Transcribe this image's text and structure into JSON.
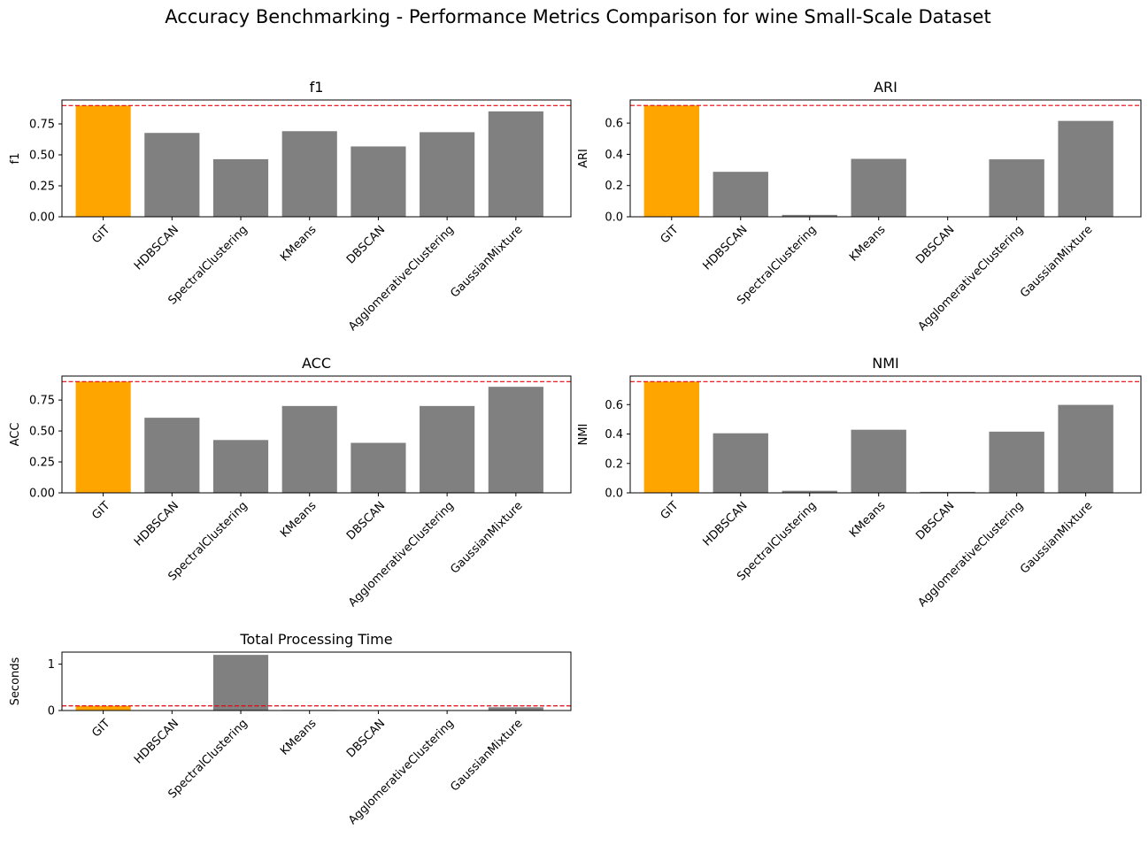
{
  "figure": {
    "suptitle": "Accuracy Benchmarking - Performance Metrics Comparison for wine Small-Scale Dataset"
  },
  "colors": {
    "highlight": "#ffa500",
    "bar": "#808080",
    "reference_line": "#e8000b"
  },
  "chart_data": [
    {
      "type": "bar",
      "title": "f1",
      "ylabel": "f1",
      "categories": [
        "GIT",
        "HDBSCAN",
        "SpectralClustering",
        "KMeans",
        "DBSCAN",
        "AgglomerativeClustering",
        "GaussianMixture"
      ],
      "values": [
        0.898,
        0.677,
        0.465,
        0.691,
        0.568,
        0.683,
        0.851
      ],
      "ylim": [
        0,
        0.943
      ],
      "yticks": [
        0.0,
        0.25,
        0.5,
        0.75
      ],
      "ytick_labels": [
        "0.00",
        "0.25",
        "0.50",
        "0.75"
      ],
      "reference_line": 0.898,
      "highlight_category": "GIT"
    },
    {
      "type": "bar",
      "title": "ARI",
      "ylabel": "ARI",
      "categories": [
        "GIT",
        "HDBSCAN",
        "SpectralClustering",
        "KMeans",
        "DBSCAN",
        "AgglomerativeClustering",
        "GaussianMixture"
      ],
      "values": [
        0.713,
        0.288,
        0.012,
        0.371,
        0.0,
        0.368,
        0.614
      ],
      "ylim": [
        0,
        0.748
      ],
      "yticks": [
        0.0,
        0.2,
        0.4,
        0.6
      ],
      "ytick_labels": [
        "0.0",
        "0.2",
        "0.4",
        "0.6"
      ],
      "reference_line": 0.713,
      "highlight_category": "GIT"
    },
    {
      "type": "bar",
      "title": "ACC",
      "ylabel": "ACC",
      "categories": [
        "GIT",
        "HDBSCAN",
        "SpectralClustering",
        "KMeans",
        "DBSCAN",
        "AgglomerativeClustering",
        "GaussianMixture"
      ],
      "values": [
        0.899,
        0.607,
        0.427,
        0.702,
        0.404,
        0.702,
        0.857
      ],
      "ylim": [
        0,
        0.944
      ],
      "yticks": [
        0.0,
        0.25,
        0.5,
        0.75
      ],
      "ytick_labels": [
        "0.00",
        "0.25",
        "0.50",
        "0.75"
      ],
      "reference_line": 0.899,
      "highlight_category": "GIT"
    },
    {
      "type": "bar",
      "title": "NMI",
      "ylabel": "NMI",
      "categories": [
        "GIT",
        "HDBSCAN",
        "SpectralClustering",
        "KMeans",
        "DBSCAN",
        "AgglomerativeClustering",
        "GaussianMixture"
      ],
      "values": [
        0.756,
        0.405,
        0.014,
        0.429,
        0.007,
        0.416,
        0.598
      ],
      "ylim": [
        0,
        0.794
      ],
      "yticks": [
        0.0,
        0.2,
        0.4,
        0.6
      ],
      "ytick_labels": [
        "0.0",
        "0.2",
        "0.4",
        "0.6"
      ],
      "reference_line": 0.756,
      "highlight_category": "GIT"
    },
    {
      "type": "bar",
      "title": "Total Processing Time",
      "ylabel": "Seconds",
      "categories": [
        "GIT",
        "HDBSCAN",
        "SpectralClustering",
        "KMeans",
        "DBSCAN",
        "AgglomerativeClustering",
        "GaussianMixture"
      ],
      "values": [
        0.1,
        0.004,
        1.2,
        0.012,
        0.004,
        0.004,
        0.07
      ],
      "ylim": [
        0,
        1.26
      ],
      "yticks": [
        0,
        1
      ],
      "ytick_labels": [
        "0",
        "1"
      ],
      "reference_line": 0.1,
      "highlight_category": "GIT"
    }
  ]
}
